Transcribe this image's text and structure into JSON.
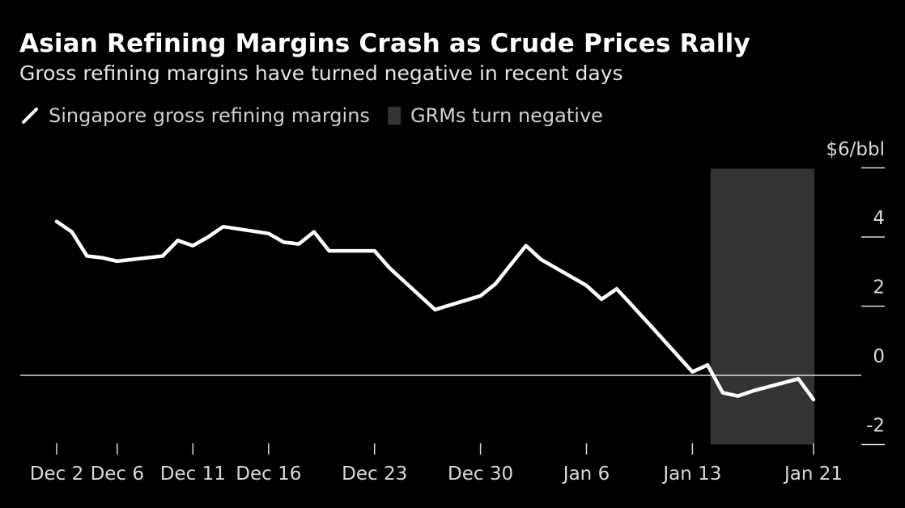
{
  "header": {
    "title": "Asian Refining Margins Crash as Crude Prices Rally",
    "subtitle": "Gross refining margins have turned negative in recent days"
  },
  "legend": {
    "line_label": "Singapore gross refining margins",
    "shade_label": "GRMs turn negative"
  },
  "colors": {
    "background": "#000000",
    "line": "#ffffff",
    "shade": "#333333",
    "zero_line": "#d9d9d9"
  },
  "chart_data": {
    "type": "line",
    "unit_label": "$6/bbl",
    "y_ticks": [
      "4",
      "2",
      "0",
      "-2"
    ],
    "x_ticks": [
      "Dec 2",
      "Dec 6",
      "Dec 11",
      "Dec 16",
      "Dec 23",
      "Dec 30",
      "Jan 6",
      "Jan 13",
      "Jan 21"
    ],
    "ylim": [
      -2,
      6
    ],
    "grid": false,
    "legend_position": "top-left",
    "shaded_period": {
      "label": "GRMs turn negative",
      "start": "Jan 15",
      "end": "Jan 21"
    },
    "series": [
      {
        "name": "Singapore gross refining margins",
        "x": [
          "Dec 2",
          "Dec 3",
          "Dec 4",
          "Dec 5",
          "Dec 6",
          "Dec 9",
          "Dec 10",
          "Dec 11",
          "Dec 12",
          "Dec 13",
          "Dec 16",
          "Dec 17",
          "Dec 18",
          "Dec 19",
          "Dec 20",
          "Dec 23",
          "Dec 24",
          "Dec 27",
          "Dec 30",
          "Dec 31",
          "Jan 2",
          "Jan 3",
          "Jan 6",
          "Jan 7",
          "Jan 8",
          "Jan 10",
          "Jan 13",
          "Jan 14",
          "Jan 15",
          "Jan 16",
          "Jan 17",
          "Jan 20",
          "Jan 21"
        ],
        "y": [
          4.45,
          4.15,
          3.45,
          3.4,
          3.3,
          3.45,
          3.9,
          3.75,
          4.0,
          4.3,
          4.1,
          3.85,
          3.8,
          4.15,
          3.6,
          3.6,
          3.1,
          1.9,
          2.3,
          2.65,
          3.75,
          3.35,
          2.6,
          2.2,
          2.5,
          1.55,
          0.1,
          0.3,
          -0.5,
          -0.6,
          -0.45,
          -0.1,
          -0.7
        ]
      }
    ]
  }
}
